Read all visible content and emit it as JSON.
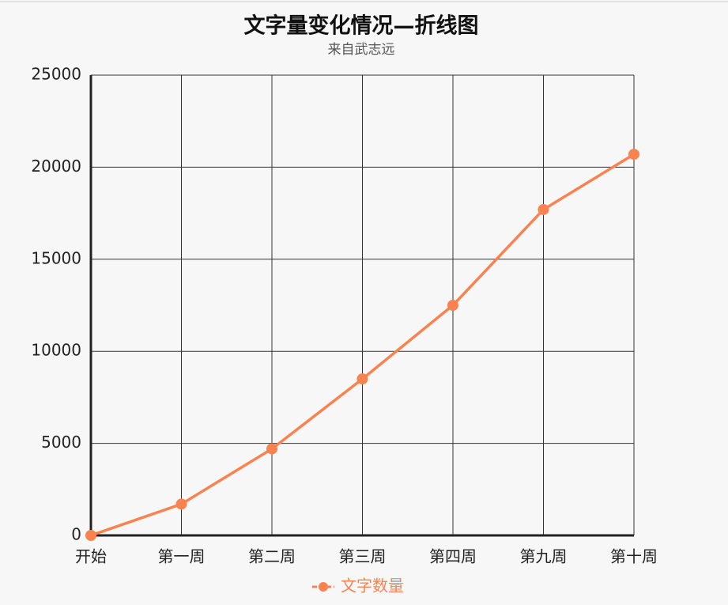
{
  "chart_data": {
    "type": "line",
    "title": "文字量变化情况—折线图",
    "subtitle": "来自武志远",
    "categories": [
      "开始",
      "第一周",
      "第二周",
      "第三周",
      "第四周",
      "第九周",
      "第十周"
    ],
    "series": [
      {
        "name": "文字数量",
        "color": "#f98350",
        "values": [
          0,
          1700,
          4700,
          8500,
          12500,
          17700,
          20700
        ]
      }
    ],
    "ylim": [
      0,
      25000
    ],
    "yticks": [
      0,
      5000,
      10000,
      15000,
      20000,
      25000
    ],
    "grid": true,
    "legend": "bottom"
  }
}
